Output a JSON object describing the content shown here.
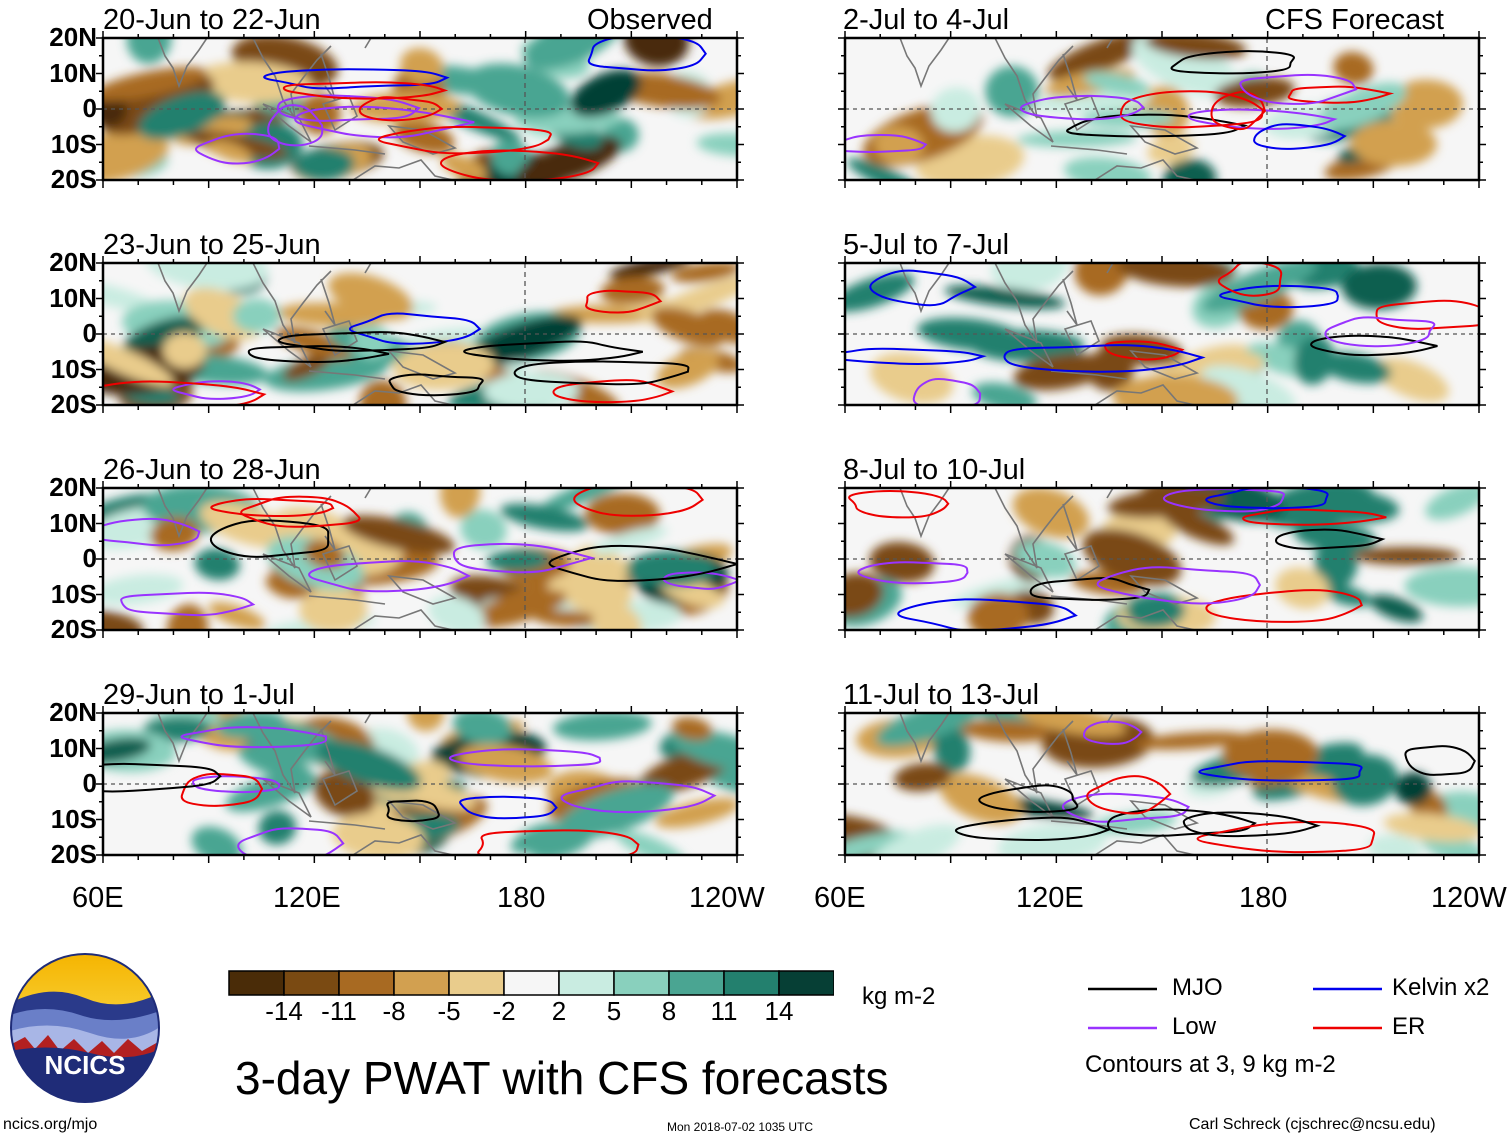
{
  "title": "3-day PWAT with CFS forecasts",
  "units": "kg m-2",
  "columns": {
    "observed": "Observed",
    "forecast": "CFS Forecast"
  },
  "panels": {
    "observed": [
      {
        "period": "20-Jun to 22-Jun"
      },
      {
        "period": "23-Jun to 25-Jun"
      },
      {
        "period": "26-Jun to 28-Jun"
      },
      {
        "period": "29-Jun to 1-Jul"
      }
    ],
    "forecast": [
      {
        "period": "2-Jul to 4-Jul"
      },
      {
        "period": "5-Jul to 7-Jul"
      },
      {
        "period": "8-Jul to 10-Jul"
      },
      {
        "period": "11-Jul to 13-Jul"
      }
    ]
  },
  "lat_labels": [
    "20N",
    "10N",
    "0",
    "10S",
    "20S"
  ],
  "lon_labels": [
    "60E",
    "120E",
    "180",
    "120W"
  ],
  "colorbar": {
    "labels": [
      "-14",
      "-11",
      "-8",
      "-5",
      "-2",
      "2",
      "5",
      "8",
      "11",
      "14"
    ],
    "colors": [
      "#4a2c08",
      "#7a4a12",
      "#a86a22",
      "#d2a050",
      "#e9cc8c",
      "#f7ebc8",
      "#f6f6f6",
      "#c9ece1",
      "#89d0bd",
      "#4aa592",
      "#23806e",
      "#0d5e4f",
      "#063f35"
    ]
  },
  "legend": {
    "items": [
      {
        "label": "MJO",
        "color": "#000000"
      },
      {
        "label": "Kelvin x2",
        "color": "#0000ee"
      },
      {
        "label": "Low",
        "color": "#9933ff"
      },
      {
        "label": "ER",
        "color": "#ee0000"
      }
    ],
    "note": "Contours at 3, 9 kg m-2"
  },
  "logo": {
    "text": "NCICS"
  },
  "footer": {
    "url": "ncics.org/mjo",
    "timestamp": "Mon 2018-07-02 1035 UTC",
    "credit": "Carl Schreck (cjschrec@ncsu.edu)"
  }
}
